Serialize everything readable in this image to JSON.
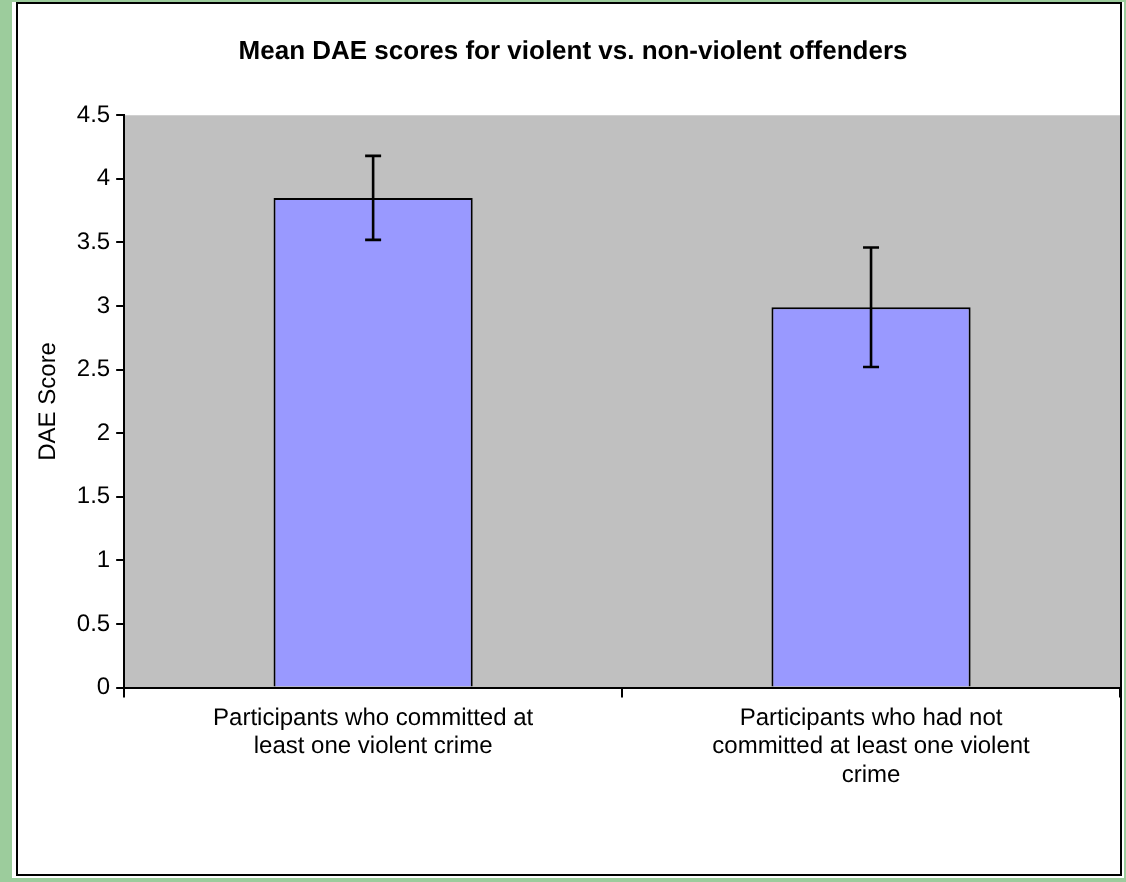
{
  "chart_data": {
    "type": "bar",
    "title": "Mean DAE scores for violent vs. non-violent offenders",
    "ylabel": "DAE Score",
    "categories": [
      "Participants who committed at least one violent crime",
      "Participants who had not committed at least one violent crime"
    ],
    "values": [
      3.85,
      2.99
    ],
    "errors": [
      0.33,
      0.47
    ],
    "color": "#9999ff",
    "ylim": [
      0,
      4.5
    ],
    "yticks": [
      0,
      0.5,
      1,
      1.5,
      2,
      2.5,
      3,
      3.5,
      4,
      4.5
    ],
    "grid": false,
    "legend": false
  }
}
